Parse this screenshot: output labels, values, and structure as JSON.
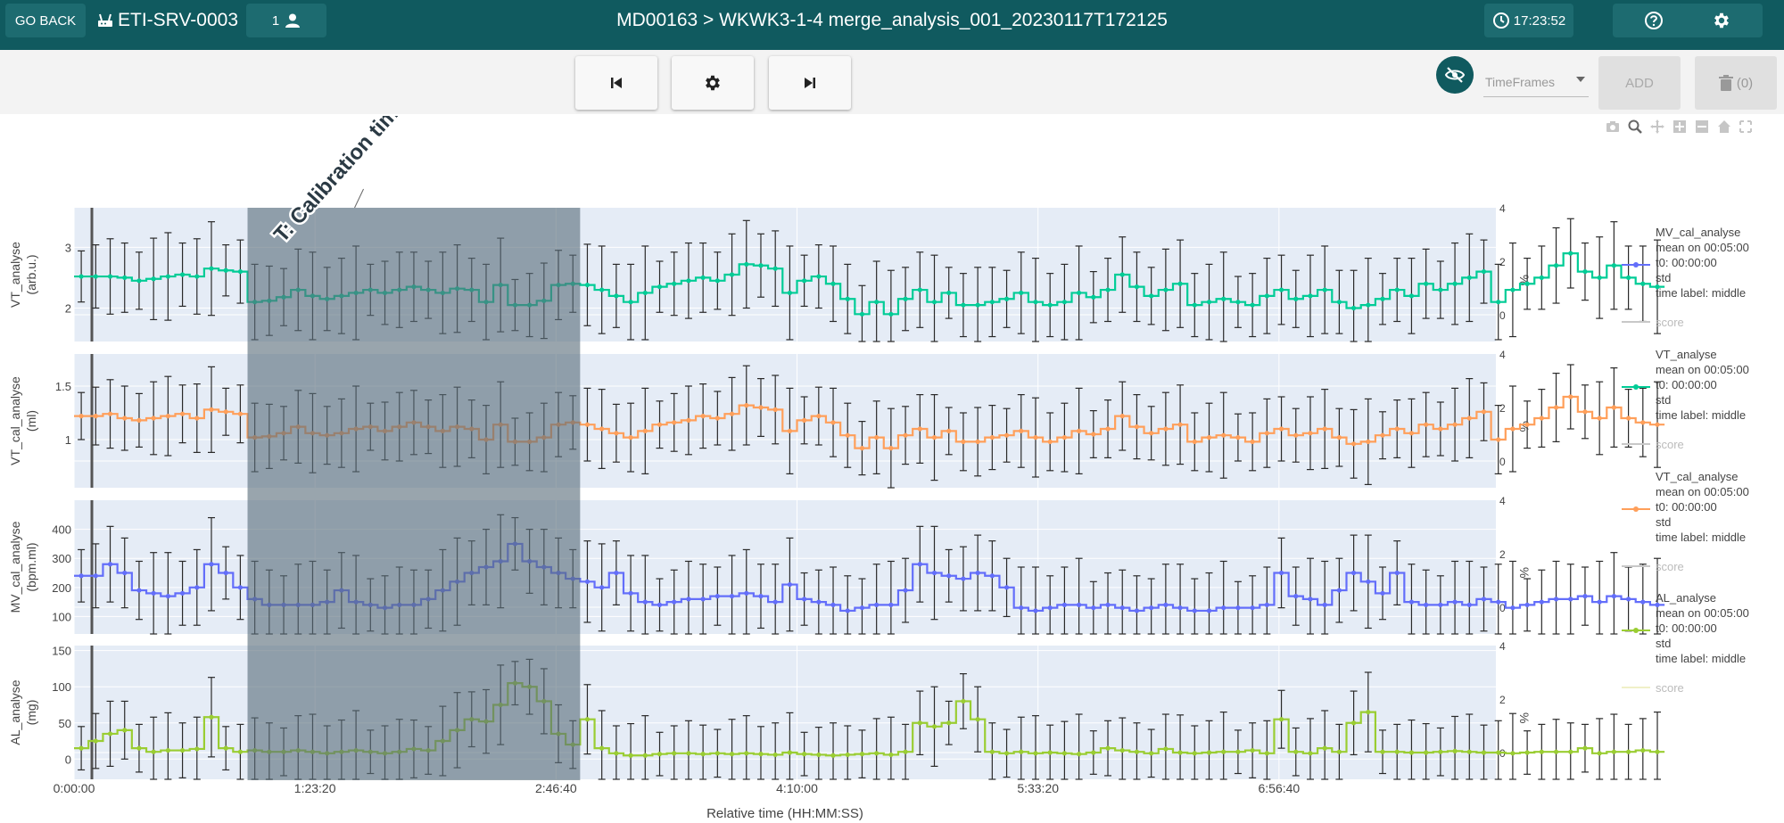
{
  "header": {
    "go_back": "GO BACK",
    "server": "ETI-SRV-0003",
    "users_count": "1",
    "title": "MD00163 > WKWK3-1-4 merge_analysis_001_20230117T172125",
    "time": "17:23:52",
    "icons": [
      "router-icon",
      "person-icon",
      "clock-icon",
      "help-icon",
      "gear-icon"
    ]
  },
  "toolbar": {
    "timeframes_placeholder": "TimeFrames",
    "add_label": "ADD",
    "delete_label": "(0)",
    "icons": [
      "skip-previous-icon",
      "gear-icon",
      "skip-next-icon",
      "eye-off-icon",
      "trash-icon"
    ]
  },
  "colors": {
    "header": "#105a5f",
    "plot_bg": "#e5ecf6",
    "mv": "#636efa",
    "vt": "#00cc96",
    "vt_cal": "#ff9f5a",
    "al": "#9acd32",
    "calibration_band": "#5b6e7a"
  },
  "chart_data": {
    "type": "line",
    "xlabel": "Relative time (HH:MM:SS)",
    "x_ticks": [
      "0:00:00",
      "1:23:20",
      "2:46:40",
      "4:10:00",
      "5:33:20",
      "6:56:40"
    ],
    "x_tick_seconds": [
      0,
      5000,
      10000,
      15000,
      20000,
      25000
    ],
    "x_range_seconds": [
      0,
      29500
    ],
    "step_seconds": 300,
    "calibration": {
      "label": "T: Calibration timeframe",
      "start_seconds": 3600,
      "end_seconds": 10500
    },
    "right_axis_label": "%",
    "right_ticks": [
      "0",
      "2",
      "4"
    ],
    "panels": [
      {
        "ylabel_1": "VT_analyse",
        "ylabel_2": "(arb.u.)",
        "ylim": [
          1.45,
          3.65
        ],
        "y_ticks": [
          2,
          3
        ],
        "y_tick_labels": [
          "2",
          "3"
        ],
        "color": "#00cc96",
        "values": [
          2.52,
          2.52,
          2.52,
          2.5,
          2.45,
          2.48,
          2.52,
          2.55,
          2.52,
          2.65,
          2.62,
          2.6,
          2.1,
          2.12,
          2.18,
          2.3,
          2.2,
          2.15,
          2.2,
          2.25,
          2.3,
          2.25,
          2.3,
          2.35,
          2.3,
          2.25,
          2.32,
          2.3,
          2.1,
          2.38,
          2.05,
          2.05,
          2.12,
          2.38,
          2.4,
          2.38,
          2.3,
          2.2,
          2.1,
          2.25,
          2.35,
          2.4,
          2.45,
          2.5,
          2.45,
          2.55,
          2.72,
          2.7,
          2.65,
          2.25,
          2.45,
          2.52,
          2.4,
          2.15,
          1.9,
          2.1,
          1.9,
          2.15,
          2.3,
          2.1,
          2.25,
          2.05,
          2.05,
          2.1,
          2.15,
          2.25,
          2.1,
          2.05,
          2.1,
          2.25,
          2.18,
          2.3,
          2.55,
          2.35,
          2.2,
          2.3,
          2.4,
          2.05,
          2.1,
          2.15,
          2.1,
          2.05,
          2.2,
          2.3,
          2.15,
          2.2,
          2.3,
          2.1,
          2.0,
          2.05,
          2.15,
          2.3,
          2.2,
          2.4,
          2.3,
          2.4,
          2.5,
          2.6,
          2.1,
          2.3,
          2.4,
          2.5,
          2.7,
          2.9,
          2.6,
          2.5,
          2.7,
          2.5,
          2.4,
          2.35
        ],
        "std": 0.42,
        "std_extra": [
          0.0,
          0.1,
          0.2,
          0.15,
          0.05,
          0.25,
          0.3,
          0.1,
          0.2,
          0.35
        ]
      },
      {
        "ylabel_1": "VT_cal_analyse",
        "ylabel_2": "(ml)",
        "ylim": [
          0.55,
          1.8
        ],
        "y_ticks": [
          1,
          1.5
        ],
        "y_tick_labels": [
          "1",
          "1.5"
        ],
        "color": "#ff9f5a",
        "values": [
          1.22,
          1.22,
          1.24,
          1.2,
          1.18,
          1.2,
          1.22,
          1.24,
          1.2,
          1.28,
          1.26,
          1.24,
          1.02,
          1.03,
          1.06,
          1.12,
          1.06,
          1.04,
          1.06,
          1.1,
          1.12,
          1.08,
          1.12,
          1.16,
          1.12,
          1.08,
          1.12,
          1.1,
          1.0,
          1.14,
          0.98,
          0.98,
          1.02,
          1.14,
          1.16,
          1.14,
          1.1,
          1.06,
          1.02,
          1.08,
          1.14,
          1.16,
          1.18,
          1.22,
          1.2,
          1.24,
          1.32,
          1.3,
          1.28,
          1.08,
          1.18,
          1.22,
          1.16,
          1.04,
          0.92,
          1.02,
          0.92,
          1.04,
          1.1,
          1.02,
          1.08,
          0.98,
          0.98,
          1.02,
          1.04,
          1.08,
          1.02,
          0.98,
          1.02,
          1.08,
          1.05,
          1.1,
          1.22,
          1.12,
          1.06,
          1.1,
          1.14,
          0.98,
          1.02,
          1.04,
          1.02,
          0.98,
          1.06,
          1.1,
          1.04,
          1.06,
          1.1,
          1.02,
          0.96,
          0.98,
          1.04,
          1.1,
          1.06,
          1.14,
          1.1,
          1.14,
          1.2,
          1.26,
          1.0,
          1.1,
          1.14,
          1.2,
          1.3,
          1.4,
          1.26,
          1.2,
          1.3,
          1.2,
          1.16,
          1.14
        ],
        "std": 0.22,
        "std_extra": [
          0.0,
          0.05,
          0.1,
          0.08,
          0.03,
          0.12,
          0.15,
          0.05,
          0.1,
          0.18
        ]
      },
      {
        "ylabel_1": "MV_cal_analyse",
        "ylabel_2": "(bpm.ml)",
        "ylim": [
          40,
          500
        ],
        "y_ticks": [
          100,
          200,
          300,
          400
        ],
        "y_tick_labels": [
          "100",
          "200",
          "300",
          "400"
        ],
        "color": "#636efa",
        "values": [
          240,
          240,
          280,
          250,
          190,
          180,
          170,
          180,
          200,
          280,
          250,
          200,
          160,
          140,
          140,
          140,
          140,
          150,
          190,
          150,
          140,
          130,
          140,
          140,
          160,
          190,
          220,
          250,
          270,
          290,
          350,
          290,
          270,
          250,
          230,
          220,
          200,
          250,
          180,
          150,
          140,
          150,
          160,
          160,
          170,
          170,
          180,
          170,
          150,
          210,
          160,
          150,
          140,
          120,
          130,
          140,
          140,
          190,
          280,
          250,
          240,
          230,
          250,
          240,
          200,
          130,
          120,
          130,
          140,
          140,
          130,
          140,
          130,
          120,
          130,
          140,
          130,
          120,
          120,
          130,
          130,
          130,
          140,
          250,
          170,
          160,
          140,
          190,
          250,
          220,
          180,
          250,
          150,
          140,
          140,
          150,
          140,
          160,
          150,
          130,
          140,
          150,
          160,
          160,
          170,
          150,
          170,
          160,
          150,
          140
        ],
        "std": 90,
        "std_extra": [
          0,
          20,
          40,
          30,
          10,
          50,
          60,
          20,
          40,
          70
        ]
      },
      {
        "ylabel_1": "AL_analyse",
        "ylabel_2": "(mg)",
        "ylim": [
          -28,
          157
        ],
        "y_ticks": [
          0,
          50,
          100,
          150
        ],
        "y_tick_labels": [
          "0",
          "50",
          "100",
          "150"
        ],
        "color": "#9acd32",
        "values": [
          15,
          25,
          35,
          40,
          15,
          10,
          12,
          12,
          14,
          58,
          15,
          10,
          12,
          10,
          10,
          12,
          10,
          8,
          10,
          12,
          10,
          8,
          10,
          14,
          12,
          25,
          40,
          55,
          52,
          75,
          105,
          100,
          80,
          35,
          20,
          55,
          15,
          8,
          5,
          5,
          7,
          8,
          8,
          7,
          8,
          7,
          8,
          7,
          6,
          9,
          7,
          6,
          5,
          6,
          7,
          8,
          6,
          10,
          50,
          45,
          50,
          80,
          55,
          10,
          8,
          10,
          8,
          9,
          8,
          7,
          9,
          15,
          12,
          10,
          8,
          14,
          9,
          8,
          9,
          10,
          10,
          12,
          8,
          55,
          10,
          8,
          15,
          10,
          50,
          65,
          10,
          10,
          9,
          9,
          10,
          11,
          10,
          9,
          9,
          8,
          9,
          10,
          10,
          10,
          15,
          8,
          10,
          10,
          12,
          10
        ],
        "std": 30,
        "std_extra": [
          0,
          8,
          15,
          10,
          3,
          18,
          22,
          8,
          14,
          25
        ]
      }
    ],
    "legend": [
      {
        "name": "MV_cal_analyse",
        "details": [
          "mean on 00:05:00",
          "t0: 00:00:00",
          "std",
          "time label: middle"
        ],
        "color": "#636efa",
        "score_color": "#c8c8c8"
      },
      {
        "name": "VT_analyse",
        "details": [
          "mean on 00:05:00",
          "t0: 00:00:00",
          "std",
          "time label: middle"
        ],
        "color": "#00cc96",
        "score_color": "#c8c8c8"
      },
      {
        "name": "VT_cal_analyse",
        "details": [
          "mean on 00:05:00",
          "t0: 00:00:00",
          "std",
          "time label: middle"
        ],
        "color": "#ff9f5a",
        "score_color": "#c8c8c8"
      },
      {
        "name": "AL_analyse",
        "details": [
          "mean on 00:05:00",
          "t0: 00:00:00",
          "std",
          "time label: middle"
        ],
        "color": "#9acd32",
        "score_color": "#f0f0c8"
      }
    ],
    "score_label": "score"
  }
}
